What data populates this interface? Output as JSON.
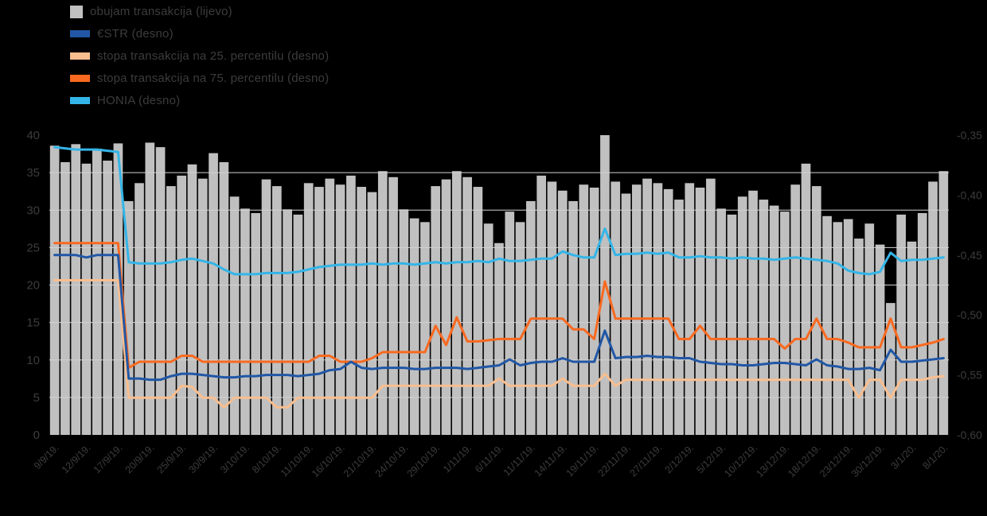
{
  "colors": {
    "background": "#000000",
    "text": "#3c3c3c",
    "grid": "#d2d2d2"
  },
  "legend": {
    "items": [
      {
        "label": "obujam transakcija (lijevo)",
        "color": "#c0c0c0",
        "marker": "bar"
      },
      {
        "label": "€STR (desno)",
        "color": "#2157a6",
        "marker": "line"
      },
      {
        "label": "stopa transakcija na 25. percentilu (desno)",
        "color": "#f9be8f",
        "marker": "line"
      },
      {
        "label": "stopa transakcija na 75. percentilu (desno)",
        "color": "#f9691f",
        "marker": "line"
      },
      {
        "label": "HONIA (desno)",
        "color": "#33b5e8",
        "marker": "line"
      }
    ]
  },
  "chart_data": {
    "type": "combo",
    "grid": {
      "horizontal": true
    },
    "x_label_every": 3,
    "x_labels": [
      "9/9/19.",
      "12/9/19.",
      "17/9/19.",
      "20/9/19.",
      "25/9/19.",
      "30/9/19.",
      "3/10/19.",
      "8/10/19.",
      "11/10/19.",
      "16/10/19.",
      "21/10/19.",
      "24/10/19.",
      "29/10/19.",
      "1/11/19.",
      "6/11/19.",
      "11/11/19.",
      "14/11/19.",
      "19/11/19.",
      "22/11/19.",
      "27/11/19.",
      "2/12/19.",
      "5/12/19.",
      "10/12/19.",
      "13/12/19.",
      "18/12/19.",
      "23/12/19.",
      "30/12/19.",
      "3/1/20.",
      "8/1/20."
    ],
    "left_axis": {
      "min": 0,
      "max": 40,
      "ticks": [
        "40",
        "35",
        "30",
        "25",
        "20",
        "15",
        "10",
        "5",
        "0"
      ]
    },
    "right_axis": {
      "ticks": [
        "-0,35",
        "-0,40",
        "-0,45",
        "-0,50",
        "-0,55",
        "-0,60"
      ]
    },
    "bar_series": {
      "name": "obujam transakcija (lijevo)",
      "axis": "left",
      "color": "#c0c0c0",
      "values": [
        38.6,
        36.4,
        38.8,
        36.2,
        38.2,
        36.6,
        38.9,
        31.2,
        33.6,
        39.0,
        38.4,
        33.2,
        34.6,
        36.1,
        34.2,
        37.6,
        36.4,
        31.8,
        30.2,
        29.6,
        34.1,
        33.2,
        30.1,
        29.4,
        33.6,
        33.1,
        34.2,
        33.4,
        34.6,
        33.1,
        32.4,
        35.2,
        34.4,
        30.1,
        28.9,
        28.4,
        33.2,
        34.1,
        35.2,
        34.4,
        33.1,
        28.2,
        25.6,
        29.8,
        28.4,
        31.2,
        34.6,
        33.8,
        32.6,
        31.2,
        33.4,
        33.0,
        40.0,
        33.8,
        32.2,
        33.4,
        34.2,
        33.6,
        32.8,
        31.4,
        33.6,
        33.0,
        34.2,
        30.2,
        29.4,
        31.8,
        32.6,
        31.4,
        30.6,
        29.8,
        33.4,
        36.2,
        33.2,
        29.2,
        28.4,
        28.8,
        26.2,
        28.2,
        25.4,
        17.6,
        29.4,
        25.8,
        29.6,
        33.8,
        35.2
      ]
    },
    "line_series": [
      {
        "name": "stopa transakcija na 25. percentilu (desno)",
        "axis": "right",
        "color": "#f9be8f",
        "values": [
          -0.471,
          -0.471,
          -0.471,
          -0.471,
          -0.471,
          -0.471,
          -0.471,
          -0.569,
          -0.569,
          -0.569,
          -0.569,
          -0.569,
          -0.559,
          -0.56,
          -0.569,
          -0.569,
          -0.577,
          -0.569,
          -0.569,
          -0.569,
          -0.569,
          -0.577,
          -0.577,
          -0.569,
          -0.569,
          -0.569,
          -0.569,
          -0.569,
          -0.569,
          -0.569,
          -0.569,
          -0.559,
          -0.559,
          -0.559,
          -0.559,
          -0.559,
          -0.559,
          -0.559,
          -0.559,
          -0.559,
          -0.559,
          -0.559,
          -0.553,
          -0.559,
          -0.559,
          -0.559,
          -0.559,
          -0.559,
          -0.553,
          -0.559,
          -0.559,
          -0.559,
          -0.549,
          -0.559,
          -0.554,
          -0.554,
          -0.554,
          -0.554,
          -0.554,
          -0.554,
          -0.554,
          -0.554,
          -0.554,
          -0.554,
          -0.554,
          -0.554,
          -0.554,
          -0.554,
          -0.554,
          -0.554,
          -0.554,
          -0.554,
          -0.554,
          -0.554,
          -0.554,
          -0.554,
          -0.569,
          -0.554,
          -0.554,
          -0.569,
          -0.554,
          -0.554,
          -0.554,
          -0.552,
          -0.551
        ]
      },
      {
        "name": "stopa transakcija na 75. percentilu (desno)",
        "axis": "right",
        "color": "#f9691f",
        "values": [
          -0.44,
          -0.44,
          -0.44,
          -0.44,
          -0.44,
          -0.44,
          -0.44,
          -0.544,
          -0.539,
          -0.539,
          -0.539,
          -0.539,
          -0.534,
          -0.534,
          -0.539,
          -0.539,
          -0.539,
          -0.539,
          -0.539,
          -0.539,
          -0.539,
          -0.539,
          -0.539,
          -0.539,
          -0.539,
          -0.534,
          -0.534,
          -0.539,
          -0.539,
          -0.539,
          -0.536,
          -0.531,
          -0.531,
          -0.531,
          -0.531,
          -0.531,
          -0.509,
          -0.525,
          -0.502,
          -0.522,
          -0.522,
          -0.521,
          -0.52,
          -0.52,
          -0.52,
          -0.503,
          -0.503,
          -0.503,
          -0.503,
          -0.512,
          -0.512,
          -0.52,
          -0.472,
          -0.503,
          -0.503,
          -0.503,
          -0.503,
          -0.503,
          -0.503,
          -0.52,
          -0.52,
          -0.509,
          -0.52,
          -0.52,
          -0.52,
          -0.52,
          -0.52,
          -0.52,
          -0.52,
          -0.528,
          -0.52,
          -0.52,
          -0.503,
          -0.52,
          -0.52,
          -0.523,
          -0.527,
          -0.527,
          -0.527,
          -0.503,
          -0.527,
          -0.527,
          -0.525,
          -0.523,
          -0.52
        ]
      },
      {
        "name": "€STR (desno)",
        "axis": "right",
        "color": "#2157a6",
        "values": [
          -0.45,
          -0.45,
          -0.45,
          -0.452,
          -0.45,
          -0.45,
          -0.45,
          -0.553,
          -0.553,
          -0.554,
          -0.554,
          -0.551,
          -0.549,
          -0.549,
          -0.55,
          -0.551,
          -0.552,
          -0.552,
          -0.551,
          -0.551,
          -0.55,
          -0.55,
          -0.55,
          -0.551,
          -0.55,
          -0.549,
          -0.546,
          -0.545,
          -0.539,
          -0.544,
          -0.545,
          -0.544,
          -0.544,
          -0.544,
          -0.545,
          -0.545,
          -0.544,
          -0.544,
          -0.544,
          -0.545,
          -0.544,
          -0.543,
          -0.542,
          -0.537,
          -0.542,
          -0.54,
          -0.539,
          -0.539,
          -0.536,
          -0.539,
          -0.539,
          -0.539,
          -0.513,
          -0.536,
          -0.535,
          -0.535,
          -0.534,
          -0.535,
          -0.535,
          -0.536,
          -0.536,
          -0.539,
          -0.54,
          -0.541,
          -0.541,
          -0.542,
          -0.542,
          -0.541,
          -0.54,
          -0.54,
          -0.541,
          -0.542,
          -0.537,
          -0.542,
          -0.543,
          -0.545,
          -0.545,
          -0.544,
          -0.546,
          -0.529,
          -0.539,
          -0.539,
          -0.538,
          -0.537,
          -0.536
        ]
      },
      {
        "name": "HONIA (desno)",
        "axis": "right",
        "color": "#33b5e8",
        "values": [
          -0.36,
          -0.361,
          -0.362,
          -0.362,
          -0.362,
          -0.363,
          -0.364,
          -0.456,
          -0.457,
          -0.457,
          -0.457,
          -0.456,
          -0.454,
          -0.453,
          -0.455,
          -0.457,
          -0.462,
          -0.466,
          -0.466,
          -0.466,
          -0.465,
          -0.465,
          -0.465,
          -0.464,
          -0.462,
          -0.46,
          -0.459,
          -0.458,
          -0.458,
          -0.458,
          -0.457,
          -0.458,
          -0.457,
          -0.457,
          -0.458,
          -0.457,
          -0.456,
          -0.457,
          -0.456,
          -0.456,
          -0.455,
          -0.456,
          -0.453,
          -0.455,
          -0.455,
          -0.454,
          -0.453,
          -0.453,
          -0.447,
          -0.45,
          -0.452,
          -0.452,
          -0.428,
          -0.45,
          -0.449,
          -0.449,
          -0.448,
          -0.449,
          -0.448,
          -0.452,
          -0.452,
          -0.451,
          -0.452,
          -0.452,
          -0.453,
          -0.452,
          -0.453,
          -0.453,
          -0.454,
          -0.453,
          -0.452,
          -0.453,
          -0.454,
          -0.455,
          -0.457,
          -0.463,
          -0.465,
          -0.466,
          -0.464,
          -0.448,
          -0.455,
          -0.454,
          -0.454,
          -0.453,
          -0.452
        ]
      }
    ]
  }
}
